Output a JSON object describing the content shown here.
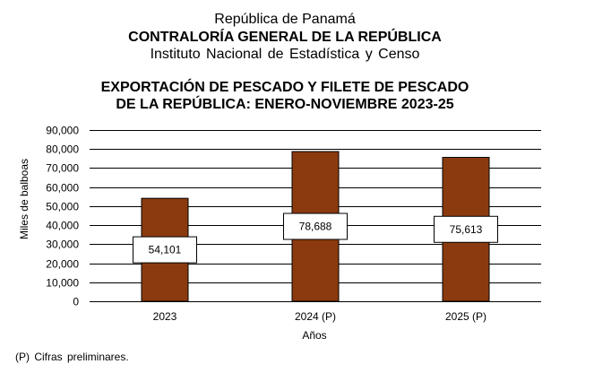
{
  "header": {
    "country": "República de Panamá",
    "organization": "CONTRALORÍA GENERAL DE LA REPÚBLICA",
    "institute": "Instituto  Nacional de Estadística  y  Censo",
    "title_line1": "EXPORTACIÓN DE PESCADO Y FILETE DE PESCADO",
    "title_line2": "DE LA REPÚBLICA: ENERO-NOVIEMBRE 2023-25"
  },
  "footnote": "(P) Cifras  preliminares.",
  "colors": {
    "bar": "#8B3A0F",
    "bar_outline": "#000000",
    "grid": "#000000",
    "label_box": "#ffffff"
  },
  "chart_data": {
    "type": "bar",
    "title": "EXPORTACIÓN DE PESCADO Y FILETE DE PESCADO DE LA REPÚBLICA: ENERO-NOVIEMBRE 2023-25",
    "xlabel": "Años",
    "ylabel": "Miles de balboas",
    "categories": [
      "2023",
      "2024 (P)",
      "2025 (P)"
    ],
    "values": [
      54101,
      78688,
      75613
    ],
    "value_labels": [
      "54,101",
      "78,688",
      "75,613"
    ],
    "ylim": [
      0,
      90000
    ],
    "yticks": [
      0,
      10000,
      20000,
      30000,
      40000,
      50000,
      60000,
      70000,
      80000,
      90000
    ],
    "ytick_labels": [
      "0",
      "10,000",
      "20,000",
      "30,000",
      "40,000",
      "50,000",
      "60,000",
      "70,000",
      "80,000",
      "90,000"
    ],
    "grid": true,
    "legend": "none"
  }
}
